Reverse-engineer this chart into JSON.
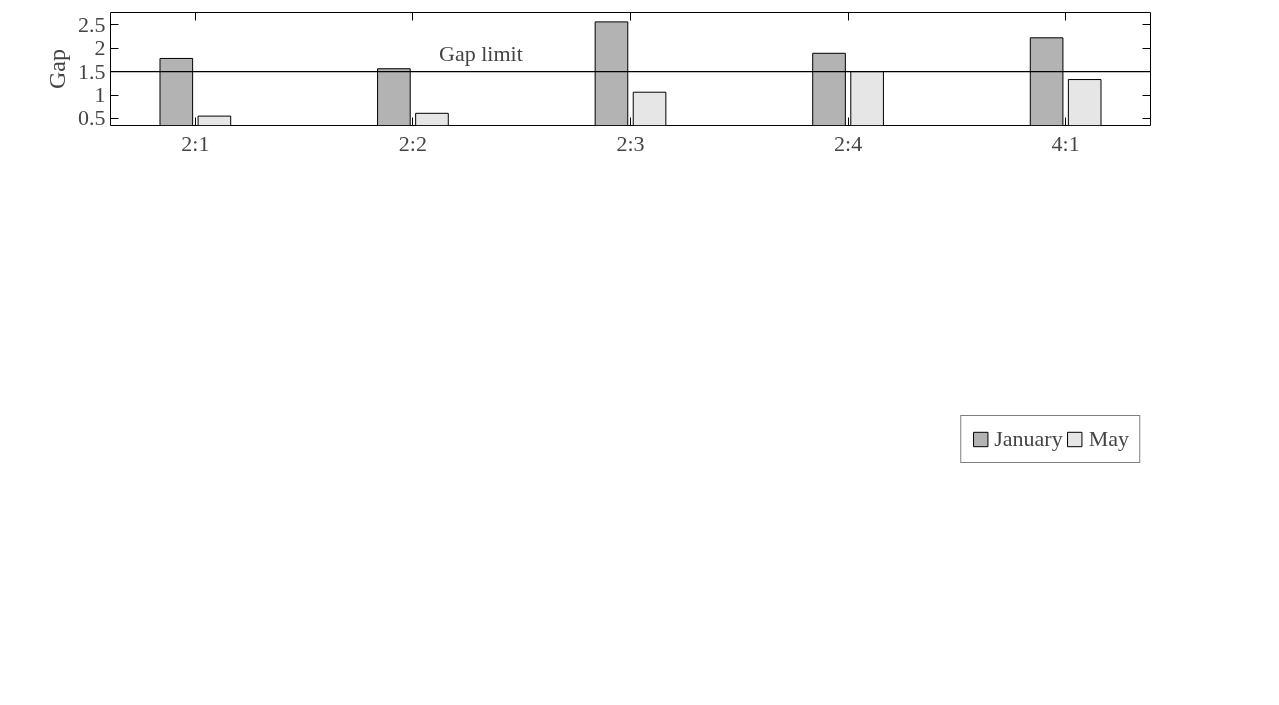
{
  "chart_data": {
    "type": "bar",
    "ylabel": "Gap",
    "categories": [
      "2:1",
      "2:2",
      "2:3",
      "2:4",
      "4:1"
    ],
    "series": [
      {
        "name": "January",
        "color": "#b3b3b3",
        "values": [
          1.78,
          1.56,
          2.56,
          1.89,
          2.22
        ]
      },
      {
        "name": "May",
        "color": "#e6e6e6",
        "values": [
          0.55,
          0.61,
          1.06,
          1.5,
          1.33
        ]
      }
    ],
    "ylim": [
      0.35,
      2.76
    ],
    "yticks": [
      0.5,
      1,
      1.5,
      2,
      2.5
    ],
    "ref_lines": [
      {
        "axis": "y",
        "value": 1.5,
        "label": "Gap limit"
      }
    ],
    "grid": false,
    "legend": "bottom"
  }
}
